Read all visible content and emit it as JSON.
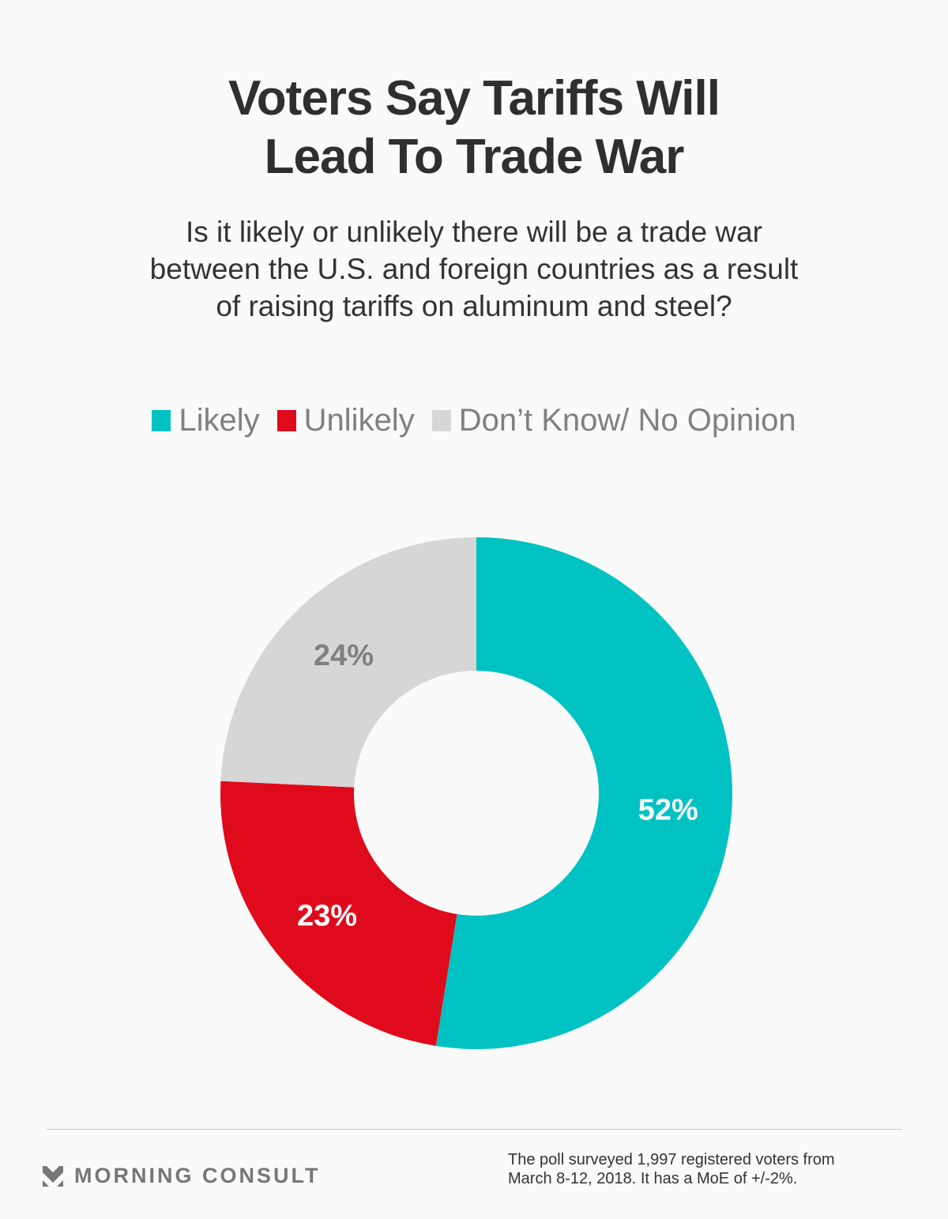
{
  "header": {
    "title_line1": "Voters Say Tariffs Will",
    "title_line2": "Lead To Trade War",
    "subtitle_line1": "Is it likely or unlikely there will be a trade war",
    "subtitle_line2": "between the U.S. and foreign countries as a result",
    "subtitle_line3": "of raising tariffs on aluminum and steel?"
  },
  "chart_data": {
    "type": "pie",
    "donut": true,
    "title": "Voters Say Tariffs Will Lead To Trade War",
    "start": "top",
    "direction": "clockwise",
    "legend_position": "top",
    "slices": [
      {
        "label": "Likely",
        "value": 52,
        "display": "52%",
        "color": "#00c2c3",
        "label_color": "#ffffff"
      },
      {
        "label": "Unlikely",
        "value": 23,
        "display": "23%",
        "color": "#df0b1c",
        "label_color": "#ffffff"
      },
      {
        "label": "Don’t Know/ No Opinion",
        "value": 24,
        "display": "24%",
        "color": "#d6d6d6",
        "label_color": "#808080"
      }
    ]
  },
  "footer": {
    "brand": "MORNING CONSULT",
    "note_line1": "The poll surveyed 1,997 registered voters from",
    "note_line2": "March 8-12, 2018. It has a MoE of +/-2%."
  }
}
